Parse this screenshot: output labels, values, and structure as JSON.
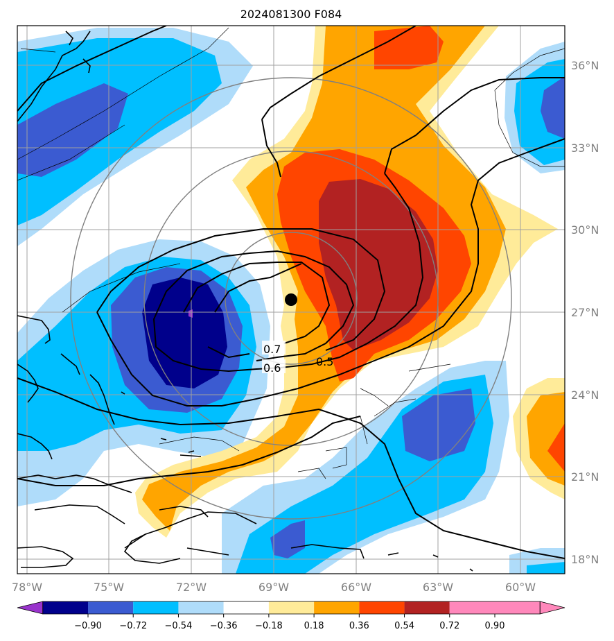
{
  "title": "2024081300 F084",
  "map": {
    "lon_labels": [
      "78°W",
      "75°W",
      "72°W",
      "69°W",
      "66°W",
      "63°W",
      "60°W"
    ],
    "lat_labels": [
      "36°N",
      "33°N",
      "30°N",
      "27°N",
      "24°N",
      "21°N",
      "18°N"
    ],
    "contour_labels": [
      "0.7",
      "0.6",
      "0.5"
    ],
    "marker": "storm-center-dot"
  },
  "colorbar": {
    "ticks": [
      "−0.90",
      "−0.72",
      "−0.54",
      "−0.36",
      "−0.18",
      "0.18",
      "0.36",
      "0.54",
      "0.72",
      "0.90"
    ],
    "colors": [
      "#9933cc",
      "#00008b",
      "#3b5bd1",
      "#00bfff",
      "#afdcfa",
      "#ffffff",
      "#ffeb99",
      "#ffa500",
      "#ff4500",
      "#b22222",
      "#ff88bb"
    ]
  },
  "colors": {
    "deep_blue": "#00008b",
    "royal_blue": "#3b5bd1",
    "sky_blue": "#00bfff",
    "light_blue": "#afdcfa",
    "light_yellow": "#ffeb99",
    "orange": "#ffa500",
    "red_orange": "#ff4500",
    "dark_red": "#b22222",
    "grid": "#a0a0a0",
    "range_rings": "#808080"
  }
}
